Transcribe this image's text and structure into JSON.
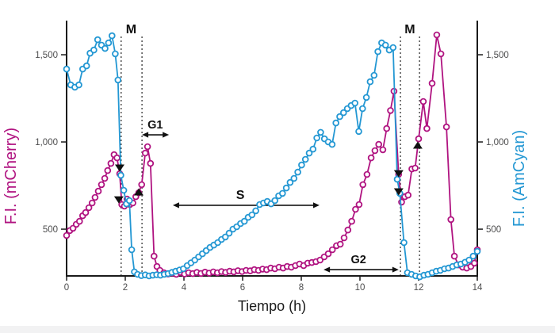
{
  "figure": {
    "xlabel": "Tiempo (h)",
    "ylabel_left": "F.I. (mCherry)",
    "ylabel_right": "F.I. (AmCyan)"
  },
  "colors": {
    "mcherry": "#B01380",
    "amcyan": "#2397D3",
    "axis": "#1a1a1a",
    "tick_text": "#4d4d4e",
    "annotation": "#111111"
  },
  "chart_data": {
    "type": "line",
    "title": "",
    "xlabel": "Tiempo (h)",
    "ylabel_left": "F.I. (mCherry)",
    "ylabel_right": "F.I. (AmCyan)",
    "xlim": [
      0,
      14
    ],
    "ylim": [
      232,
      1660
    ],
    "grid": false,
    "legend": "none (dual colored axes)",
    "x_ticks": [
      "0",
      "2",
      "4",
      "6",
      "8",
      "10",
      "12",
      "14"
    ],
    "y_ticks": [
      {
        "v": 500,
        "label": "500"
      },
      {
        "v": 1000,
        "label": "1,000"
      },
      {
        "v": 1500,
        "label": "1,500"
      }
    ],
    "series": [
      {
        "name": "mCherry",
        "axis": "left",
        "color": "#B01380",
        "points": [
          [
            0.0,
            464
          ],
          [
            0.11,
            492
          ],
          [
            0.22,
            505
          ],
          [
            0.33,
            528
          ],
          [
            0.44,
            545
          ],
          [
            0.55,
            577
          ],
          [
            0.65,
            595
          ],
          [
            0.76,
            623
          ],
          [
            0.87,
            650
          ],
          [
            0.97,
            682
          ],
          [
            1.08,
            718
          ],
          [
            1.19,
            755
          ],
          [
            1.3,
            791
          ],
          [
            1.4,
            836
          ],
          [
            1.51,
            877
          ],
          [
            1.62,
            927
          ],
          [
            1.72,
            909
          ],
          [
            1.81,
            818
          ],
          [
            1.88,
            641
          ],
          [
            1.97,
            632
          ],
          [
            2.06,
            673
          ],
          [
            2.16,
            641
          ],
          [
            2.26,
            650
          ],
          [
            2.36,
            686
          ],
          [
            2.46,
            709
          ],
          [
            2.56,
            755
          ],
          [
            2.68,
            936
          ],
          [
            2.76,
            973
          ],
          [
            2.86,
            877
          ],
          [
            2.98,
            345
          ],
          [
            3.08,
            286
          ],
          [
            3.18,
            264
          ],
          [
            3.32,
            250
          ],
          [
            3.46,
            243
          ],
          [
            3.6,
            248
          ],
          [
            3.74,
            241
          ],
          [
            3.88,
            252
          ],
          [
            4.02,
            243
          ],
          [
            4.16,
            250
          ],
          [
            4.3,
            245
          ],
          [
            4.44,
            252
          ],
          [
            4.58,
            246
          ],
          [
            4.72,
            254
          ],
          [
            4.86,
            248
          ],
          [
            5.0,
            255
          ],
          [
            5.14,
            250
          ],
          [
            5.28,
            257
          ],
          [
            5.42,
            252
          ],
          [
            5.56,
            259
          ],
          [
            5.7,
            255
          ],
          [
            5.84,
            262
          ],
          [
            5.98,
            257
          ],
          [
            6.12,
            264
          ],
          [
            6.26,
            261
          ],
          [
            6.4,
            268
          ],
          [
            6.54,
            264
          ],
          [
            6.68,
            271
          ],
          [
            6.82,
            268
          ],
          [
            6.96,
            277
          ],
          [
            7.1,
            273
          ],
          [
            7.24,
            282
          ],
          [
            7.38,
            277
          ],
          [
            7.52,
            286
          ],
          [
            7.66,
            282
          ],
          [
            7.8,
            291
          ],
          [
            7.94,
            300
          ],
          [
            8.08,
            291
          ],
          [
            8.22,
            305
          ],
          [
            8.36,
            309
          ],
          [
            8.5,
            314
          ],
          [
            8.64,
            323
          ],
          [
            8.78,
            341
          ],
          [
            8.92,
            359
          ],
          [
            9.06,
            382
          ],
          [
            9.2,
            405
          ],
          [
            9.33,
            414
          ],
          [
            9.46,
            450
          ],
          [
            9.59,
            495
          ],
          [
            9.72,
            545
          ],
          [
            9.85,
            614
          ],
          [
            9.97,
            641
          ],
          [
            10.1,
            755
          ],
          [
            10.24,
            814
          ],
          [
            10.38,
            909
          ],
          [
            10.51,
            950
          ],
          [
            10.64,
            986
          ],
          [
            10.78,
            955
          ],
          [
            10.91,
            1077
          ],
          [
            11.04,
            1180
          ],
          [
            11.16,
            1291
          ],
          [
            11.32,
            814
          ],
          [
            11.42,
            655
          ],
          [
            11.53,
            686
          ],
          [
            11.64,
            695
          ],
          [
            11.77,
            845
          ],
          [
            11.88,
            850
          ],
          [
            12.0,
            1018
          ],
          [
            12.16,
            1232
          ],
          [
            12.28,
            1077
          ],
          [
            12.46,
            1336
          ],
          [
            12.62,
            1614
          ],
          [
            12.76,
            1505
          ],
          [
            12.95,
            1086
          ],
          [
            13.1,
            555
          ],
          [
            13.22,
            345
          ],
          [
            13.36,
            295
          ],
          [
            13.5,
            282
          ],
          [
            13.64,
            277
          ],
          [
            13.78,
            286
          ],
          [
            13.9,
            305
          ],
          [
            14.0,
            382
          ]
        ]
      },
      {
        "name": "AmCyan",
        "axis": "right",
        "color": "#2397D3",
        "points": [
          [
            0.0,
            1418
          ],
          [
            0.14,
            1327
          ],
          [
            0.28,
            1314
          ],
          [
            0.42,
            1327
          ],
          [
            0.55,
            1418
          ],
          [
            0.68,
            1436
          ],
          [
            0.8,
            1509
          ],
          [
            0.93,
            1527
          ],
          [
            1.06,
            1586
          ],
          [
            1.19,
            1555
          ],
          [
            1.31,
            1536
          ],
          [
            1.43,
            1568
          ],
          [
            1.55,
            1609
          ],
          [
            1.66,
            1505
          ],
          [
            1.75,
            1355
          ],
          [
            1.85,
            809
          ],
          [
            1.95,
            723
          ],
          [
            2.04,
            645
          ],
          [
            2.14,
            664
          ],
          [
            2.22,
            382
          ],
          [
            2.31,
            255
          ],
          [
            2.42,
            241
          ],
          [
            2.55,
            234
          ],
          [
            2.68,
            238
          ],
          [
            2.81,
            232
          ],
          [
            2.94,
            236
          ],
          [
            3.07,
            239
          ],
          [
            3.2,
            236
          ],
          [
            3.33,
            241
          ],
          [
            3.46,
            245
          ],
          [
            3.59,
            252
          ],
          [
            3.72,
            259
          ],
          [
            3.85,
            266
          ],
          [
            3.98,
            273
          ],
          [
            4.11,
            291
          ],
          [
            4.24,
            307
          ],
          [
            4.37,
            323
          ],
          [
            4.5,
            341
          ],
          [
            4.63,
            359
          ],
          [
            4.76,
            377
          ],
          [
            4.89,
            395
          ],
          [
            5.02,
            409
          ],
          [
            5.15,
            423
          ],
          [
            5.28,
            441
          ],
          [
            5.41,
            455
          ],
          [
            5.54,
            477
          ],
          [
            5.67,
            500
          ],
          [
            5.8,
            514
          ],
          [
            5.93,
            532
          ],
          [
            6.06,
            545
          ],
          [
            6.19,
            568
          ],
          [
            6.32,
            582
          ],
          [
            6.45,
            605
          ],
          [
            6.58,
            641
          ],
          [
            6.71,
            650
          ],
          [
            6.84,
            659
          ],
          [
            6.97,
            645
          ],
          [
            7.1,
            664
          ],
          [
            7.23,
            691
          ],
          [
            7.36,
            705
          ],
          [
            7.49,
            736
          ],
          [
            7.62,
            768
          ],
          [
            7.75,
            791
          ],
          [
            7.88,
            827
          ],
          [
            8.01,
            868
          ],
          [
            8.14,
            900
          ],
          [
            8.27,
            936
          ],
          [
            8.4,
            959
          ],
          [
            8.53,
            1023
          ],
          [
            8.66,
            1055
          ],
          [
            8.79,
            1018
          ],
          [
            8.92,
            1000
          ],
          [
            9.05,
            986
          ],
          [
            9.18,
            1109
          ],
          [
            9.31,
            1145
          ],
          [
            9.44,
            1168
          ],
          [
            9.57,
            1191
          ],
          [
            9.7,
            1209
          ],
          [
            9.83,
            1223
          ],
          [
            9.96,
            1060
          ],
          [
            10.09,
            1191
          ],
          [
            10.22,
            1255
          ],
          [
            10.35,
            1345
          ],
          [
            10.48,
            1382
          ],
          [
            10.61,
            1518
          ],
          [
            10.74,
            1568
          ],
          [
            10.87,
            1555
          ],
          [
            11.0,
            1527
          ],
          [
            11.13,
            1541
          ],
          [
            11.27,
            786
          ],
          [
            11.36,
            705
          ],
          [
            11.5,
            423
          ],
          [
            11.62,
            250
          ],
          [
            11.76,
            241
          ],
          [
            11.9,
            232
          ],
          [
            12.04,
            227
          ],
          [
            12.18,
            236
          ],
          [
            12.32,
            241
          ],
          [
            12.46,
            250
          ],
          [
            12.6,
            259
          ],
          [
            12.74,
            264
          ],
          [
            12.88,
            273
          ],
          [
            13.02,
            277
          ],
          [
            13.16,
            286
          ],
          [
            13.3,
            295
          ],
          [
            13.44,
            300
          ],
          [
            13.58,
            310
          ],
          [
            13.72,
            323
          ],
          [
            13.86,
            345
          ],
          [
            14.0,
            373
          ]
        ]
      }
    ],
    "phases": [
      {
        "label": "M",
        "kind": "dashed-pair",
        "lines": [
          1.86,
          2.57
        ],
        "label_t": 2.2
      },
      {
        "label": "M",
        "kind": "dashed-pair",
        "lines": [
          11.38,
          12.03
        ],
        "label_t": 11.7
      },
      {
        "label": "G1",
        "kind": "arrow",
        "span": [
          2.57,
          3.49
        ],
        "v": 1041,
        "label_t": 3.02
      },
      {
        "label": "S",
        "kind": "arrow",
        "span": [
          3.62,
          8.62
        ],
        "v": 637,
        "label_t": 5.92
      },
      {
        "label": "G2",
        "kind": "arrow",
        "span": [
          8.76,
          11.32
        ],
        "v": 268,
        "label_t": 9.95
      }
    ],
    "event_markers": [
      {
        "dir": "down",
        "t": 1.81,
        "v": 850
      },
      {
        "dir": "down",
        "t": 1.78,
        "v": 668
      },
      {
        "dir": "up",
        "t": 2.46,
        "v": 714
      },
      {
        "dir": "down",
        "t": 11.32,
        "v": 818
      },
      {
        "dir": "down",
        "t": 11.32,
        "v": 714
      },
      {
        "dir": "up",
        "t": 11.97,
        "v": 982
      }
    ]
  }
}
